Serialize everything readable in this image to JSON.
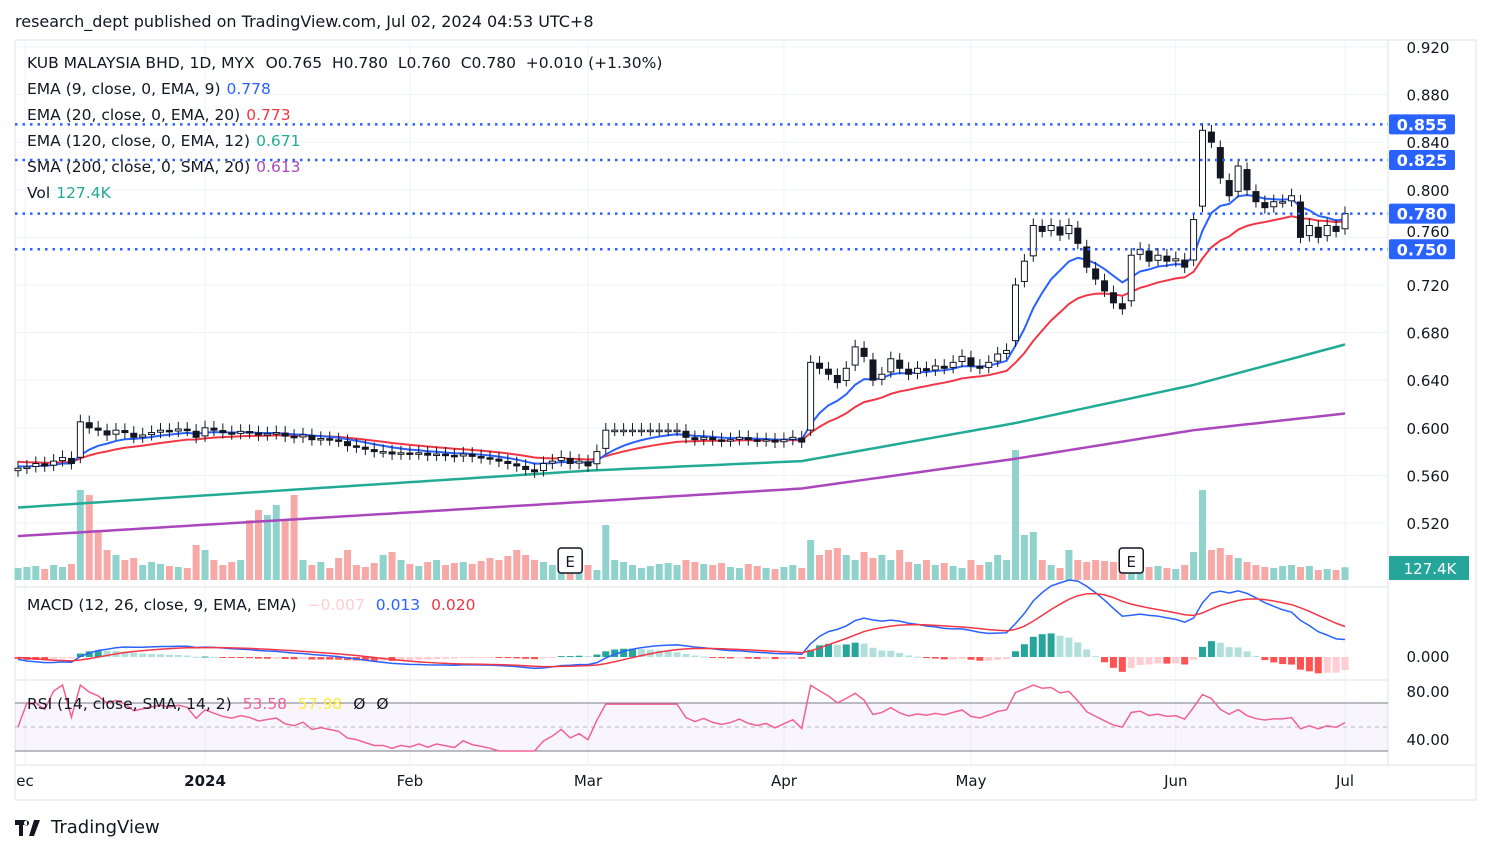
{
  "header": "research_dept published on TradingView.com, Jul 02, 2024 04:53 UTC+8",
  "legend": {
    "symbol": "KUB MALAYSIA BHD, 1D, MYX",
    "ohlc": "O0.765  H0.780  L0.760  C0.780  +0.010 (+1.30%)",
    "ema9": {
      "label": "EMA (9, close, 0, EMA, 9)",
      "value": "0.778",
      "color": "#2962ff"
    },
    "ema20": {
      "label": "EMA (20, close, 0, EMA, 20)",
      "value": "0.773",
      "color": "#f23645"
    },
    "ema120": {
      "label": "EMA (120, close, 0, EMA, 12)",
      "value": "0.671",
      "color": "#22ab94"
    },
    "sma200": {
      "label": "SMA (200, close, 0, SMA, 20)",
      "value": "0.613",
      "color": "#ab47bc"
    },
    "vol": {
      "label": "Vol",
      "value": "127.4K",
      "color": "#22ab94"
    }
  },
  "macd_legend": {
    "label": "MACD (12, 26, close, 9, EMA, EMA)",
    "hist": "−0.007",
    "macd": "0.013",
    "signal": "0.020"
  },
  "rsi_legend": {
    "label": "RSI (14, close, SMA, 14, 2)",
    "rsi": "53.58",
    "rsi_ma": "57.98",
    "extra1": "Ø",
    "extra2": "Ø"
  },
  "footer": {
    "brand": "TradingView"
  },
  "chart_data": {
    "type": "candlestick",
    "title": "KUB MALAYSIA BHD, 1D, MYX",
    "price_axis_ticks": [
      "0.920",
      "0.880",
      "0.840",
      "0.800",
      "0.760",
      "0.720",
      "0.680",
      "0.640",
      "0.600",
      "0.560",
      "0.520"
    ],
    "price_range": [
      0.5,
      0.92
    ],
    "time_axis_labels": [
      {
        "label": "ec",
        "day": 0
      },
      {
        "label": "2024",
        "day": 21
      },
      {
        "label": "Feb",
        "day": 44
      },
      {
        "label": "Mar",
        "day": 64
      },
      {
        "label": "Apr",
        "day": 86
      },
      {
        "label": "May",
        "day": 107
      },
      {
        "label": "Jun",
        "day": 130
      },
      {
        "label": "Jul",
        "day": 149
      }
    ],
    "horizontal_levels": [
      "0.855",
      "0.825",
      "0.780",
      "0.750"
    ],
    "last_volume_label": "127.4K",
    "earnings_markers": [
      {
        "label": "E",
        "day": 62
      },
      {
        "label": "E",
        "day": 125
      }
    ],
    "closes": [
      0.566,
      0.567,
      0.57,
      0.568,
      0.572,
      0.575,
      0.57,
      0.605,
      0.6,
      0.598,
      0.594,
      0.598,
      0.596,
      0.592,
      0.594,
      0.596,
      0.598,
      0.597,
      0.599,
      0.598,
      0.592,
      0.6,
      0.598,
      0.596,
      0.595,
      0.597,
      0.596,
      0.594,
      0.595,
      0.596,
      0.593,
      0.592,
      0.594,
      0.59,
      0.591,
      0.59,
      0.589,
      0.585,
      0.584,
      0.582,
      0.58,
      0.58,
      0.578,
      0.579,
      0.578,
      0.579,
      0.577,
      0.578,
      0.577,
      0.576,
      0.578,
      0.576,
      0.575,
      0.574,
      0.572,
      0.57,
      0.568,
      0.565,
      0.563,
      0.57,
      0.572,
      0.575,
      0.57,
      0.572,
      0.568,
      0.58,
      0.598,
      0.598,
      0.598,
      0.598,
      0.598,
      0.598,
      0.598,
      0.598,
      0.598,
      0.592,
      0.59,
      0.592,
      0.59,
      0.589,
      0.59,
      0.592,
      0.59,
      0.589,
      0.59,
      0.588,
      0.59,
      0.592,
      0.588,
      0.655,
      0.65,
      0.645,
      0.638,
      0.65,
      0.668,
      0.66,
      0.64,
      0.645,
      0.658,
      0.65,
      0.645,
      0.65,
      0.648,
      0.652,
      0.65,
      0.655,
      0.66,
      0.652,
      0.65,
      0.655,
      0.662,
      0.665,
      0.72,
      0.74,
      0.77,
      0.765,
      0.77,
      0.762,
      0.77,
      0.755,
      0.735,
      0.725,
      0.715,
      0.705,
      0.7,
      0.745,
      0.75,
      0.74,
      0.745,
      0.74,
      0.742,
      0.735,
      0.775,
      0.85,
      0.84,
      0.81,
      0.795,
      0.82,
      0.8,
      0.79,
      0.785,
      0.79,
      0.79,
      0.795,
      0.76,
      0.77,
      0.76,
      0.77,
      0.765,
      0.78
    ],
    "volumes_k": [
      120,
      130,
      140,
      110,
      150,
      130,
      160,
      900,
      850,
      500,
      300,
      250,
      200,
      220,
      150,
      180,
      160,
      140,
      130,
      120,
      350,
      300,
      200,
      150,
      180,
      200,
      600,
      700,
      650,
      750,
      600,
      850,
      200,
      150,
      180,
      120,
      220,
      300,
      150,
      130,
      170,
      250,
      280,
      200,
      160,
      140,
      180,
      200,
      150,
      170,
      180,
      160,
      190,
      220,
      200,
      240,
      300,
      250,
      200,
      180,
      150,
      160,
      170,
      180,
      150,
      100,
      550,
      200,
      180,
      150,
      120,
      140,
      160,
      170,
      150,
      200,
      180,
      160,
      150,
      170,
      130,
      120,
      160,
      140,
      120,
      110,
      130,
      150,
      120,
      400,
      250,
      300,
      320,
      250,
      200,
      280,
      220,
      250,
      200,
      300,
      180,
      160,
      200,
      150,
      170,
      140,
      120,
      200,
      150,
      180,
      250,
      200,
      1300,
      450,
      480,
      200,
      150,
      120,
      300,
      200,
      180,
      200,
      190,
      180,
      160,
      180,
      150,
      130,
      140,
      120,
      110,
      150,
      280,
      900,
      300,
      320,
      250,
      220,
      180,
      150,
      130,
      120,
      140,
      150,
      130,
      140,
      100,
      110,
      100,
      127.4
    ],
    "ema120_keypoints": [
      [
        0,
        0.533
      ],
      [
        64,
        0.564
      ],
      [
        88,
        0.572
      ],
      [
        112,
        0.604
      ],
      [
        132,
        0.636
      ],
      [
        149,
        0.67
      ]
    ],
    "sma200_keypoints": [
      [
        0,
        0.509
      ],
      [
        64,
        0.538
      ],
      [
        88,
        0.549
      ],
      [
        112,
        0.574
      ],
      [
        132,
        0.598
      ],
      [
        149,
        0.612
      ]
    ],
    "macd_axis": "0.000",
    "rsi_axis": [
      "80.00",
      "40.00"
    ],
    "colors": {
      "up": "#ffffff",
      "down": "#131722",
      "vol_up": "#8fd3cc",
      "vol_down": "#f7a9a7",
      "level": "#2962ff"
    }
  }
}
